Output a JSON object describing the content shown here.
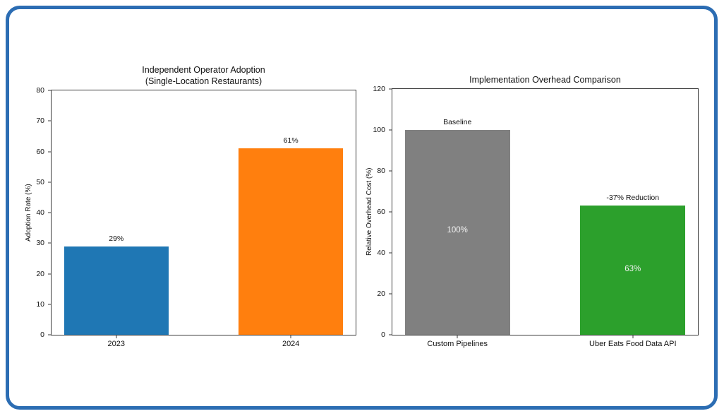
{
  "figure": {
    "border_color": "#2c6db3",
    "background_color": "#ffffff"
  },
  "chart_data": [
    {
      "type": "bar",
      "title": "Independent Operator Adoption\n(Single-Location Restaurants)",
      "xlabel": "",
      "ylabel": "Adoption Rate (%)",
      "ylim": [
        0,
        80
      ],
      "yticks": [
        0,
        10,
        20,
        30,
        40,
        50,
        60,
        70,
        80
      ],
      "categories": [
        "2023",
        "2024"
      ],
      "values": [
        29,
        61
      ],
      "bar_colors": [
        "#1f77b4",
        "#ff7f0e"
      ],
      "bar_top_labels": [
        "29%",
        "61%"
      ],
      "bar_inside_labels": [
        "",
        ""
      ],
      "grid": false
    },
    {
      "type": "bar",
      "title": "Implementation Overhead Comparison",
      "xlabel": "",
      "ylabel": "Relative Overhead Cost (%)",
      "ylim": [
        0,
        120
      ],
      "yticks": [
        0,
        20,
        40,
        60,
        80,
        100,
        120
      ],
      "categories": [
        "Custom Pipelines",
        "Uber Eats Food Data API"
      ],
      "values": [
        100,
        63
      ],
      "bar_colors": [
        "#808080",
        "#2ca02c"
      ],
      "bar_top_labels": [
        "Baseline",
        "-37% Reduction"
      ],
      "bar_inside_labels": [
        "100%",
        "63%"
      ],
      "grid": false
    }
  ]
}
